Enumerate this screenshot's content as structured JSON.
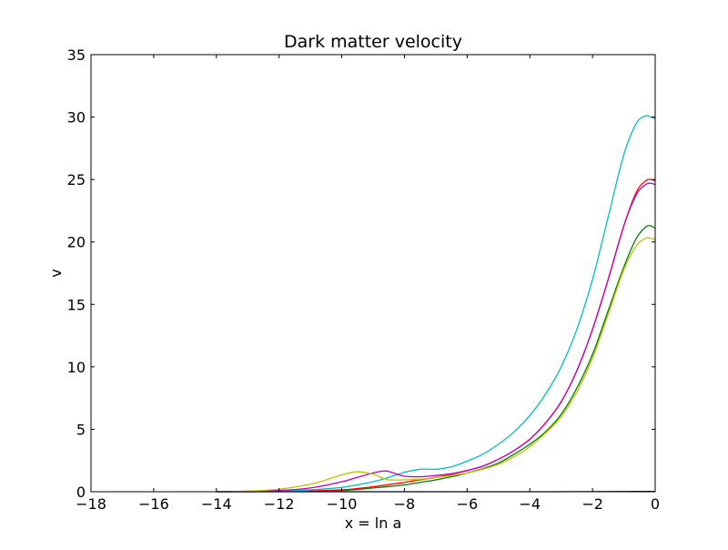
{
  "chart_data": {
    "type": "line",
    "title": "Dark matter velocity",
    "xlabel": "x = ln a",
    "ylabel": "v",
    "xlim": [
      -18,
      0
    ],
    "ylim": [
      0,
      35
    ],
    "xticks": [
      -18,
      -16,
      -14,
      -12,
      -10,
      -8,
      -6,
      -4,
      -2,
      0
    ],
    "xtick_labels": [
      "−18",
      "−16",
      "−14",
      "−12",
      "−10",
      "−8",
      "−6",
      "−4",
      "−2",
      "0"
    ],
    "yticks": [
      0,
      5,
      10,
      15,
      20,
      25,
      30,
      35
    ],
    "ytick_labels": [
      "0",
      "5",
      "10",
      "15",
      "20",
      "25",
      "30",
      "35"
    ],
    "grid": false,
    "legend": "none",
    "series": [
      {
        "color": "#0000ff",
        "x": [
          -14,
          -10,
          -6,
          -4,
          -2,
          -1,
          0
        ],
        "y": [
          0,
          0,
          0,
          0,
          0.01,
          0.02,
          0.03
        ]
      },
      {
        "color": "#008000",
        "x": [
          -14,
          -12,
          -10,
          -9,
          -8,
          -7.5,
          -7,
          -6.5,
          -6,
          -5.5,
          -5,
          -4.5,
          -4,
          -3.5,
          -3,
          -2.5,
          -2,
          -1.5,
          -1,
          -0.6,
          -0.3,
          -0.15,
          0
        ],
        "y": [
          0,
          0.02,
          0.1,
          0.3,
          0.55,
          0.75,
          0.95,
          1.2,
          1.5,
          1.85,
          2.3,
          3,
          3.8,
          4.8,
          6.2,
          8.3,
          11,
          14.5,
          18,
          20.3,
          21.2,
          21.3,
          21.1
        ]
      },
      {
        "color": "#ff0000",
        "x": [
          -14,
          -12,
          -10,
          -9,
          -8,
          -7.5,
          -7,
          -6.5,
          -6,
          -5.5,
          -5,
          -4.5,
          -4,
          -3.5,
          -3,
          -2.5,
          -2,
          -1.5,
          -1,
          -0.6,
          -0.3,
          -0.15,
          0
        ],
        "y": [
          0,
          0.02,
          0.15,
          0.4,
          0.75,
          0.95,
          1.15,
          1.4,
          1.7,
          2.05,
          2.6,
          3.3,
          4.2,
          5.5,
          7.2,
          9.7,
          13,
          17,
          21.3,
          24,
          24.9,
          25,
          24.9
        ]
      },
      {
        "color": "#00bfbf",
        "x": [
          -14,
          -12,
          -11,
          -10,
          -9,
          -8.5,
          -8,
          -7.5,
          -7,
          -6.5,
          -6,
          -5.5,
          -5,
          -4.5,
          -4,
          -3.5,
          -3,
          -2.5,
          -2,
          -1.5,
          -1,
          -0.6,
          -0.3,
          -0.15,
          0
        ],
        "y": [
          0,
          0.05,
          0.15,
          0.35,
          0.8,
          1.15,
          1.55,
          1.8,
          1.8,
          2,
          2.45,
          3,
          3.8,
          4.8,
          6.1,
          7.8,
          10,
          13,
          17,
          22,
          27,
          29.5,
          30.1,
          30,
          29.9
        ]
      },
      {
        "color": "#bf00bf",
        "x": [
          -14,
          -12,
          -11,
          -10,
          -9.5,
          -9,
          -8.7,
          -8.5,
          -8,
          -7.5,
          -7,
          -6.5,
          -6,
          -5.5,
          -5,
          -4.5,
          -4,
          -3.5,
          -3,
          -2.5,
          -2,
          -1.5,
          -1,
          -0.6,
          -0.3,
          -0.15,
          0
        ],
        "y": [
          0,
          0.1,
          0.3,
          0.8,
          1.15,
          1.5,
          1.65,
          1.62,
          1.25,
          1.2,
          1.3,
          1.45,
          1.7,
          2.05,
          2.6,
          3.3,
          4.2,
          5.5,
          7.2,
          9.7,
          13,
          17,
          21.3,
          23.8,
          24.6,
          24.7,
          24.6
        ]
      },
      {
        "color": "#bfbf00",
        "x": [
          -14,
          -13,
          -12,
          -11,
          -10.5,
          -10,
          -9.5,
          -9,
          -8.7,
          -8.5,
          -8,
          -7.5,
          -7,
          -6.5,
          -6,
          -5.5,
          -5,
          -4.5,
          -4,
          -3.5,
          -3,
          -2.5,
          -2,
          -1.5,
          -1,
          -0.6,
          -0.3,
          -0.15,
          0
        ],
        "y": [
          0,
          0.05,
          0.2,
          0.6,
          0.95,
          1.35,
          1.6,
          1.4,
          1.1,
          0.95,
          0.95,
          1,
          1.15,
          1.3,
          1.5,
          1.8,
          2.2,
          2.8,
          3.6,
          4.7,
          6,
          8,
          10.7,
          14.2,
          17.8,
          19.7,
          20.3,
          20.3,
          20.2
        ]
      }
    ]
  }
}
